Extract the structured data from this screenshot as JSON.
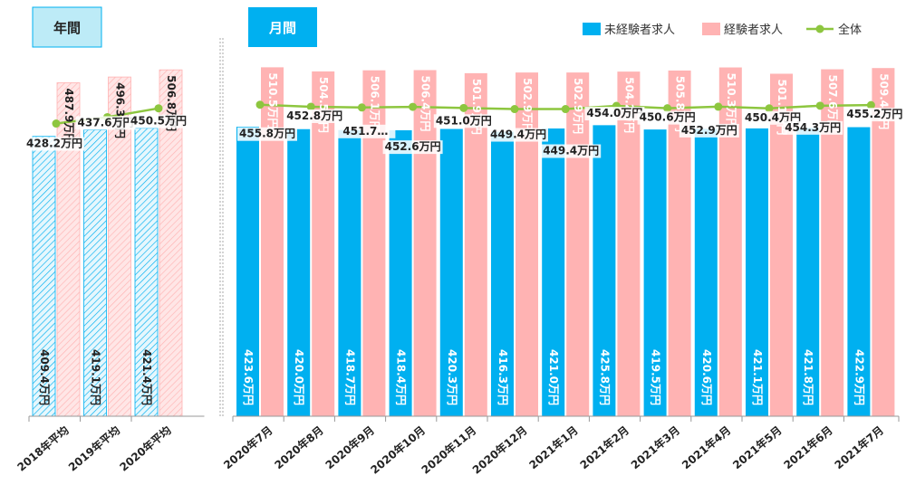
{
  "sections": {
    "annual": "年間",
    "monthly": "月間"
  },
  "legend": {
    "inexperienced": "未経験者求人",
    "experienced": "経験者求人",
    "total": "全体"
  },
  "colors": {
    "inexperienced": "#00B0F0",
    "experienced": "#FFB3B3",
    "total": "#8DC63F",
    "annual_label_bg": "#BDEBF7",
    "monthly_label_bg": "#00B0F0",
    "axis": "#999999"
  },
  "chart_data": {
    "type": "bar",
    "title": "",
    "xlabel": "",
    "ylabel": "",
    "ylim": [
      0,
      520
    ],
    "grid": false,
    "legend_position": "top-right",
    "categories": [
      "2018年平均",
      "2019年平均",
      "2020年平均",
      "2020年7月",
      "2020年8月",
      "2020年9月",
      "2020年10月",
      "2020年11月",
      "2020年12月",
      "2021年1月",
      "2021年2月",
      "2021年3月",
      "2021年4月",
      "2021年5月",
      "2021年6月",
      "2021年7月"
    ],
    "annual_count": 3,
    "series": [
      {
        "name": "未経験者求人",
        "kind": "bar",
        "values": [
          409.4,
          419.1,
          421.4,
          423.6,
          420.0,
          418.7,
          418.4,
          420.3,
          416.3,
          421.0,
          425.8,
          419.5,
          420.6,
          421.1,
          421.8,
          422.9
        ],
        "labels": [
          "409.4万円",
          "419.1万円",
          "421.4万円",
          "423.6万円",
          "420.0万円",
          "418.7万円",
          "418.4万円",
          "420.3万円",
          "416.3万円",
          "421.0万円",
          "425.8万円",
          "419.5万円",
          "420.6万円",
          "421.1万円",
          "421.8万円",
          "422.9万円"
        ]
      },
      {
        "name": "経験者求人",
        "kind": "bar",
        "values": [
          487.9,
          496.3,
          506.8,
          510.5,
          504.5,
          506.1,
          506.4,
          501.9,
          502.9,
          502.9,
          504.2,
          505.8,
          510.3,
          501.1,
          507.6,
          509.4
        ],
        "labels": [
          "487.9万円",
          "496.3万円",
          "506.8万円",
          "510.5万円",
          "504.5万円",
          "506.1万円",
          "506.4万円",
          "501.9万円",
          "502.9万円",
          "502.9万円",
          "504.2万円",
          "505.8万円",
          "510.3万円",
          "501.1万円",
          "507.6万円",
          "509.4万円"
        ]
      },
      {
        "name": "全体",
        "kind": "line",
        "values": [
          428.2,
          437.6,
          450.5,
          455.8,
          452.8,
          451.7,
          452.6,
          451.0,
          449.4,
          449.4,
          454.0,
          450.6,
          452.9,
          450.4,
          454.3,
          455.2
        ],
        "labels": [
          "428.2万円",
          "437.6万円",
          "450.5万円",
          "455.8万円",
          "452.8万円",
          "451.7…",
          "452.6万円",
          "451.0万円",
          "449.4万円",
          "449.4万円",
          "454.0万円",
          "450.6万円",
          "452.9万円",
          "450.4万円",
          "454.3万円",
          "455.2万円"
        ]
      }
    ]
  }
}
